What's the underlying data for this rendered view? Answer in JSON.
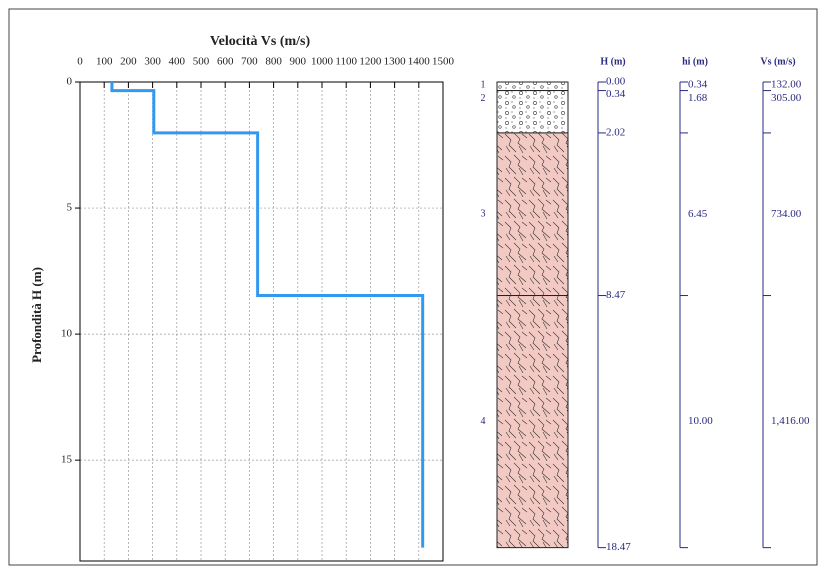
{
  "chart_data": {
    "type": "line",
    "title": "Velocità Vs (m/s)",
    "y_label": "Profondità H (m)",
    "xlim": [
      0,
      1500
    ],
    "xticks": [
      0,
      100,
      200,
      300,
      400,
      500,
      600,
      700,
      800,
      900,
      1000,
      1100,
      1200,
      1300,
      1400,
      1500
    ],
    "ylim": [
      0,
      19
    ],
    "yticks": [
      0,
      5,
      10,
      15
    ],
    "y_inverted": true,
    "grid": true,
    "series": [
      {
        "color": "#3399ee",
        "x": [
          132,
          132,
          305,
          305,
          734,
          734,
          1416,
          1416
        ],
        "values": [
          0,
          0.34,
          0.34,
          2.02,
          2.02,
          8.47,
          8.47,
          18.47
        ]
      }
    ],
    "column": {
      "headers": [
        "H (m)",
        "hi (m)",
        "Vs (m/s)"
      ],
      "layer_numbers": [
        "1",
        "2",
        "3",
        "4"
      ],
      "depths": [
        {
          "value": 0,
          "label": "0.00"
        },
        {
          "value": 0.34,
          "label": "0.34"
        },
        {
          "value": 2.02,
          "label": "2.02"
        },
        {
          "value": 8.47,
          "label": "8.47"
        },
        {
          "value": 18.47,
          "label": "18.47"
        }
      ],
      "thickness": [
        {
          "value": 0.34,
          "label": "0.34"
        },
        {
          "value": 1.68,
          "label": "1.68"
        },
        {
          "value": 6.45,
          "label": "6.45"
        },
        {
          "value": 10,
          "label": "10.00"
        }
      ],
      "vs": [
        {
          "value": 132,
          "label": "132.00"
        },
        {
          "value": 305,
          "label": "305.00"
        },
        {
          "value": 734,
          "label": "734.00"
        },
        {
          "value": 1416,
          "label": "1,416.00"
        }
      ]
    }
  }
}
